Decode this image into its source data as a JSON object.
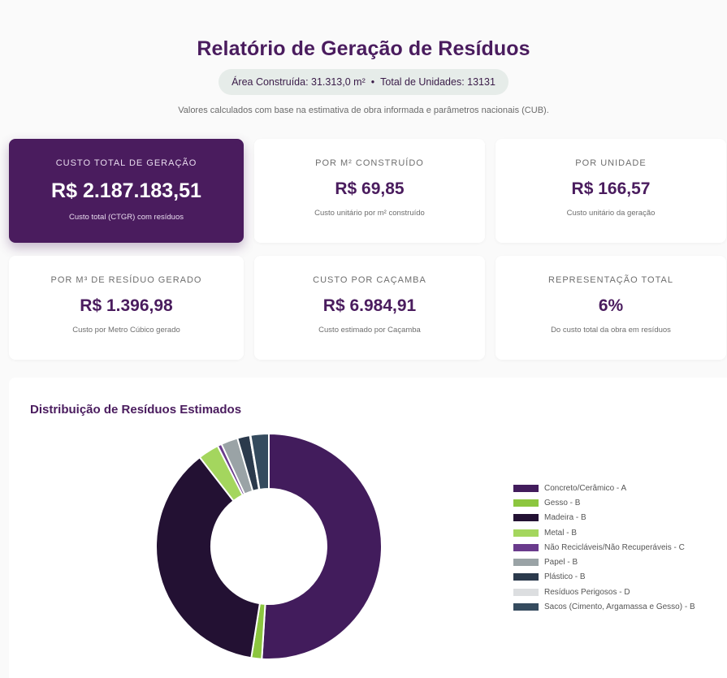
{
  "header": {
    "title": "Relatório de Geração de Resíduos",
    "area_label": "Área Construída: 31.313,0 m²",
    "separator": "•",
    "units_label": "Total de Unidades: 13131",
    "note": "Valores calculados com base na estimativa de obra informada e parâmetros nacionais (CUB)."
  },
  "cards": [
    {
      "label": "CUSTO TOTAL DE GERAÇÃO",
      "value": "R$ 2.187.183,51",
      "sub": "Custo total (CTGR) com resíduos"
    },
    {
      "label": "POR M² CONSTRUÍDO",
      "value": "R$ 69,85",
      "sub": "Custo unitário por m² construído"
    },
    {
      "label": "POR UNIDADE",
      "value": "R$ 166,57",
      "sub": "Custo unitário da geração"
    },
    {
      "label": "POR M³ DE RESÍDUO GERADO",
      "value": "R$ 1.396,98",
      "sub": "Custo por Metro Cúbico gerado"
    },
    {
      "label": "CUSTO POR CAÇAMBA",
      "value": "R$ 6.984,91",
      "sub": "Custo estimado por Caçamba"
    },
    {
      "label": "REPRESENTAÇÃO TOTAL",
      "value": "6%",
      "sub": "Do custo total da obra em resíduos"
    }
  ],
  "colors": {
    "brand": "#4a1c5e",
    "pill_bg": "#e6ece9",
    "page_bg": "#fafafa"
  },
  "chart_data": {
    "type": "pie",
    "variant": "doughnut",
    "title": "Distribuição de Resíduos Estimados",
    "legend_position": "right",
    "slices": [
      {
        "name": "Concreto/Cerâmico - A",
        "value": 51.0,
        "color": "#421c5c"
      },
      {
        "name": "Gesso - B",
        "value": 1.5,
        "color": "#8cc63f"
      },
      {
        "name": "Madeira - B",
        "value": 37.0,
        "color": "#231133"
      },
      {
        "name": "Metal - B",
        "value": 3.0,
        "color": "#a4d65e"
      },
      {
        "name": "Não Recicláveis/Não Recuperáveis - C",
        "value": 0.6,
        "color": "#6a3b8c"
      },
      {
        "name": "Papel - B",
        "value": 2.4,
        "color": "#9aa3a6"
      },
      {
        "name": "Plástico - B",
        "value": 1.8,
        "color": "#2b3a4c"
      },
      {
        "name": "Resíduos Perigosos - D",
        "value": 0.1,
        "color": "#dcdee0"
      },
      {
        "name": "Sacos (Cimento, Argamassa e Gesso) - B",
        "value": 2.6,
        "color": "#354b5e"
      }
    ]
  }
}
